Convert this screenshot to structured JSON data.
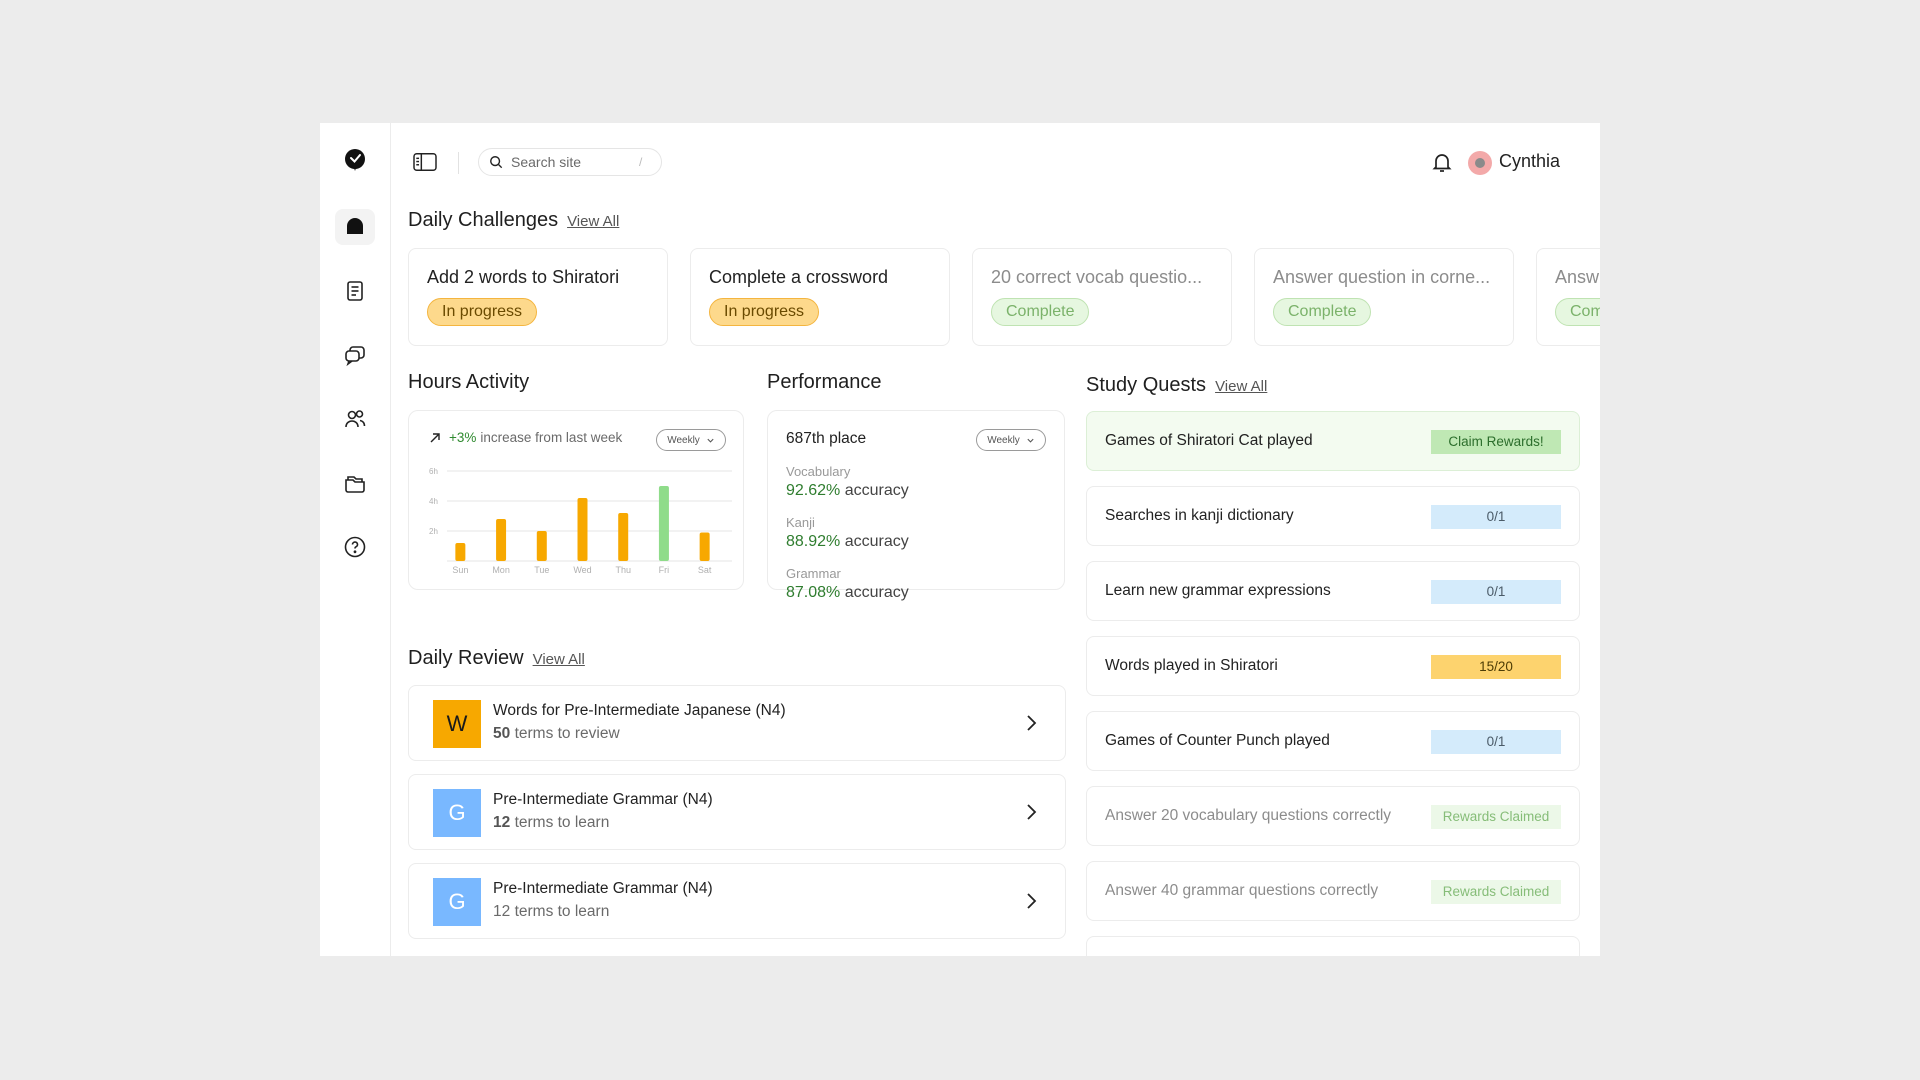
{
  "user": {
    "name": "Cynthia"
  },
  "search": {
    "placeholder": "Search site",
    "shortcut": "/"
  },
  "sidebar": {
    "items": [
      {
        "name": "logo",
        "icon": "logo-icon"
      },
      {
        "name": "home",
        "icon": "home-icon",
        "active": true
      },
      {
        "name": "notebook",
        "icon": "notebook-icon"
      },
      {
        "name": "chat",
        "icon": "chat-icon"
      },
      {
        "name": "community",
        "icon": "users-icon"
      },
      {
        "name": "folders",
        "icon": "folder-icon"
      },
      {
        "name": "help",
        "icon": "help-icon"
      }
    ]
  },
  "daily_challenges": {
    "title": "Daily Challenges",
    "view_all": "View All",
    "items": [
      {
        "title": "Add 2 words to Shiratori",
        "status": "In progress"
      },
      {
        "title": "Complete a crossword",
        "status": "In progress"
      },
      {
        "title": "20 correct vocab questio...",
        "status": "Complete"
      },
      {
        "title": "Answer question in corne...",
        "status": "Complete"
      },
      {
        "title": "Answ",
        "status": "Com"
      }
    ]
  },
  "hours_activity": {
    "title": "Hours Activity",
    "trend_value": "+3%",
    "trend_text": "increase from last week",
    "period": "Weekly"
  },
  "chart_data": {
    "type": "bar",
    "categories": [
      "Sun",
      "Mon",
      "Tue",
      "Wed",
      "Thu",
      "Fri",
      "Sat"
    ],
    "values": [
      1.2,
      2.8,
      2.0,
      4.2,
      3.2,
      5.0,
      1.9
    ],
    "highlight_index": 5,
    "y_ticks": [
      "6h",
      "4h",
      "2h"
    ],
    "y_tick_values": [
      6,
      4,
      2
    ],
    "ylim": [
      0,
      6
    ],
    "colors": {
      "bar": "#f7a800",
      "highlight": "#8fdc8a",
      "grid": "#e6e6e6",
      "label": "#b0b0b0"
    }
  },
  "performance": {
    "title": "Performance",
    "place": "687th place",
    "period": "Weekly",
    "metrics": [
      {
        "label": "Vocabulary",
        "value": "92.62%",
        "suffix": "accuracy"
      },
      {
        "label": "Kanji",
        "value": "88.92%",
        "suffix": "accuracy"
      },
      {
        "label": "Grammar",
        "value": "87.08%",
        "suffix": "accuracy"
      }
    ]
  },
  "daily_review": {
    "title": "Daily Review",
    "view_all": "View All",
    "items": [
      {
        "letter": "W",
        "title": "Words for Pre-Intermediate Japanese (N4)",
        "count": "50",
        "suffix": "terms to review"
      },
      {
        "letter": "G",
        "title": "Pre-Intermediate Grammar (N4)",
        "count": "12",
        "suffix": "terms to learn"
      },
      {
        "letter": "G",
        "title": "Pre-Intermediate Grammar (N4)",
        "count": "12",
        "suffix": "terms to learn"
      }
    ]
  },
  "study_quests": {
    "title": "Study Quests",
    "view_all": "View All",
    "items": [
      {
        "label": "Games of Shiratori Cat played",
        "tag": "Claim Rewards!"
      },
      {
        "label": "Searches in kanji dictionary",
        "tag": "0/1"
      },
      {
        "label": "Learn new grammar expressions",
        "tag": "0/1"
      },
      {
        "label": "Words played in Shiratori",
        "tag": "15/20"
      },
      {
        "label": "Games of Counter Punch played",
        "tag": "0/1"
      },
      {
        "label": "Answer 20 vocabulary questions correctly",
        "tag": "Rewards Claimed"
      },
      {
        "label": "Answer 40 grammar questions correctly",
        "tag": "Rewards Claimed"
      }
    ]
  }
}
